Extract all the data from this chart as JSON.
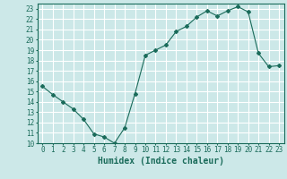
{
  "x": [
    0,
    1,
    2,
    3,
    4,
    5,
    6,
    7,
    8,
    9,
    10,
    11,
    12,
    13,
    14,
    15,
    16,
    17,
    18,
    19,
    20,
    21,
    22,
    23
  ],
  "y": [
    15.5,
    14.7,
    14.0,
    13.3,
    12.3,
    10.9,
    10.6,
    10.0,
    11.5,
    14.8,
    18.5,
    19.0,
    19.5,
    20.8,
    21.3,
    22.2,
    22.8,
    22.3,
    22.8,
    23.2,
    22.7,
    18.7,
    17.4,
    17.5
  ],
  "line_color": "#1a6b5a",
  "marker": "D",
  "marker_size": 2,
  "xlabel": "Humidex (Indice chaleur)",
  "xlim": [
    -0.5,
    23.5
  ],
  "ylim": [
    10,
    23.5
  ],
  "yticks": [
    10,
    11,
    12,
    13,
    14,
    15,
    16,
    17,
    18,
    19,
    20,
    21,
    22,
    23
  ],
  "xticks": [
    0,
    1,
    2,
    3,
    4,
    5,
    6,
    7,
    8,
    9,
    10,
    11,
    12,
    13,
    14,
    15,
    16,
    17,
    18,
    19,
    20,
    21,
    22,
    23
  ],
  "background_color": "#cce8e8",
  "grid_color": "#ffffff",
  "tick_color": "#1a6b5a",
  "label_color": "#1a6b5a",
  "font_size": 5.5,
  "xlabel_fontsize": 7
}
